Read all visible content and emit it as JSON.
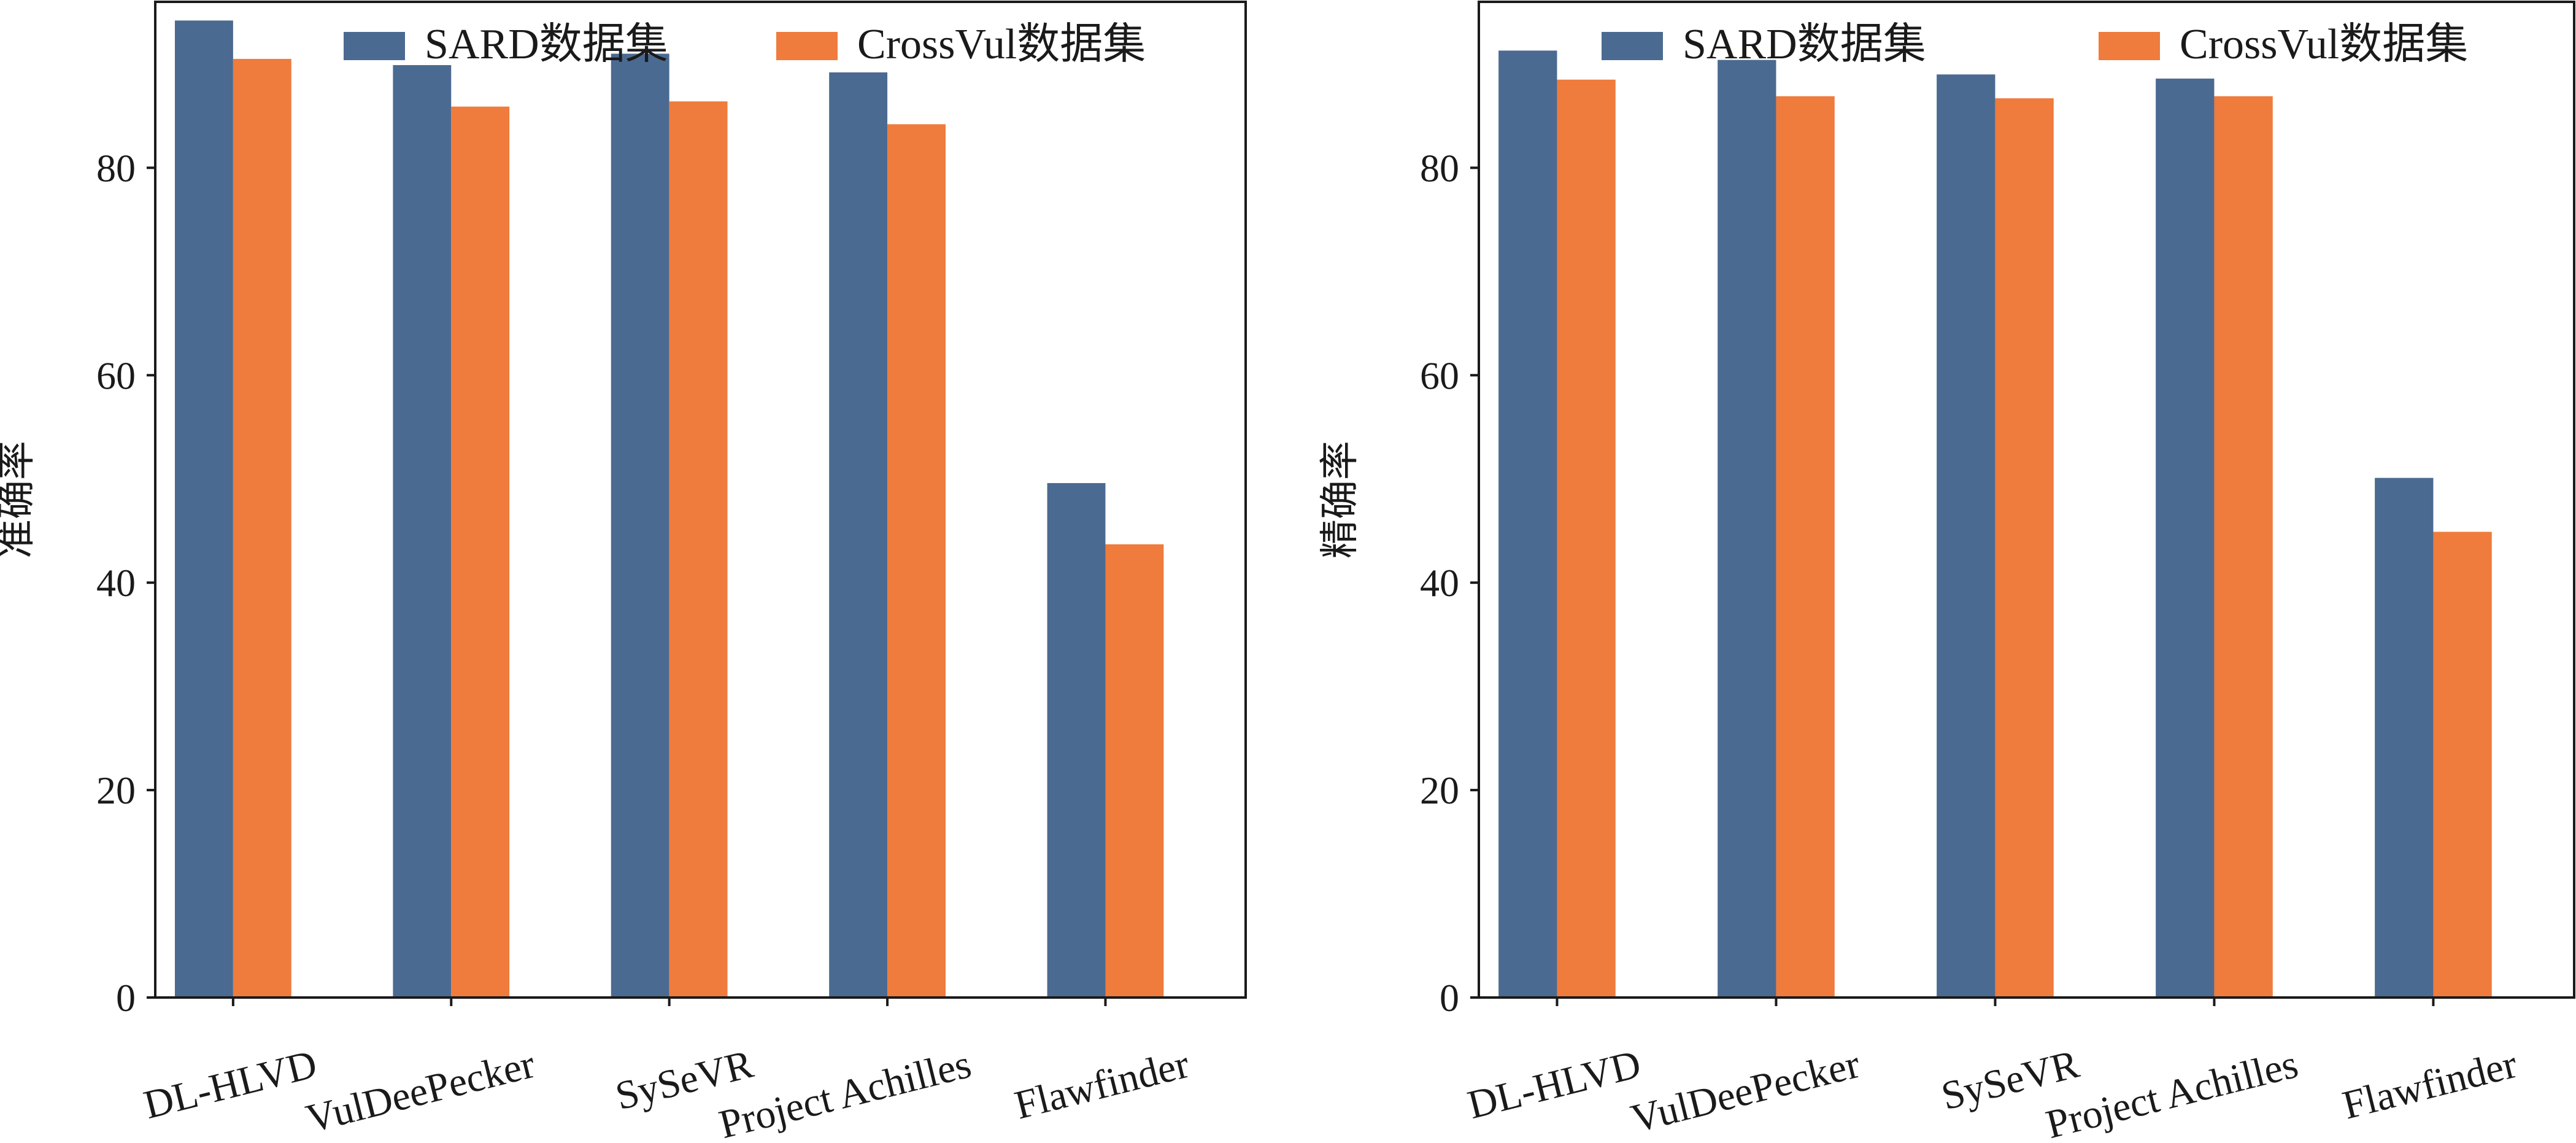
{
  "chart_data": [
    {
      "type": "bar",
      "title": "",
      "xlabel": "",
      "ylabel": "准确率",
      "ylim": [
        0,
        96
      ],
      "yticks": [
        0,
        20,
        40,
        60,
        80
      ],
      "categories": [
        "DL-HLVD",
        "VulDeePecker",
        "SySeVR",
        "Project Achilles",
        "Flawfinder"
      ],
      "series": [
        {
          "name": "SARD数据集",
          "color": "#4b6a91",
          "values": [
            94.2,
            89.9,
            91.0,
            89.2,
            49.6
          ]
        },
        {
          "name": "CrossVul数据集",
          "color": "#ef7b3c",
          "values": [
            90.5,
            85.9,
            86.4,
            84.2,
            43.7
          ]
        }
      ],
      "legend_position": "top",
      "grid": false
    },
    {
      "type": "bar",
      "title": "",
      "xlabel": "",
      "ylabel": "精确率",
      "ylim": [
        0,
        96
      ],
      "yticks": [
        0,
        20,
        40,
        60,
        80
      ],
      "categories": [
        "DL-HLVD",
        "VulDeePecker",
        "SySeVR",
        "Project Achilles",
        "Flawfinder"
      ],
      "series": [
        {
          "name": "SARD数据集",
          "color": "#4b6a91",
          "values": [
            91.3,
            90.4,
            89.0,
            88.6,
            50.1
          ]
        },
        {
          "name": "CrossVul数据集",
          "color": "#ef7b3c",
          "values": [
            88.5,
            86.9,
            86.7,
            86.9,
            44.9
          ]
        }
      ],
      "legend_position": "top",
      "grid": false
    }
  ]
}
